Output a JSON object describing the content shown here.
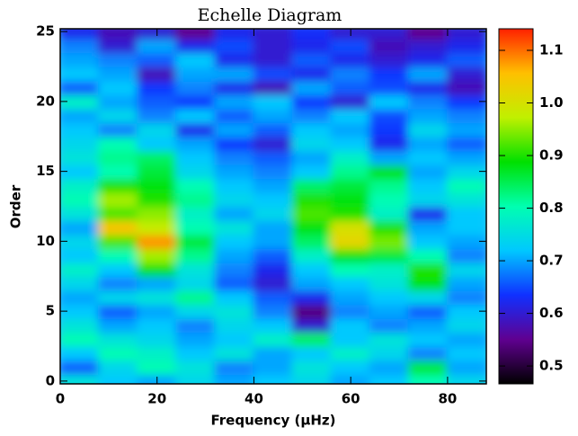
{
  "chart_data": {
    "type": "heatmap",
    "title": "Echelle Diagram",
    "x_label": "Frequency (μHz)",
    "y_label": "Order",
    "x": [
      4,
      12,
      20,
      28,
      36,
      44,
      52,
      60,
      68,
      76,
      84
    ],
    "y": [
      0,
      1,
      2,
      3,
      4,
      5,
      6,
      7,
      8,
      9,
      10,
      11,
      12,
      13,
      14,
      15,
      16,
      17,
      18,
      19,
      20,
      21,
      22,
      23,
      24,
      25
    ],
    "z": [
      [
        0.76,
        0.72,
        0.7,
        0.74,
        0.7,
        0.72,
        0.74,
        0.7,
        0.72,
        0.8,
        0.74
      ],
      [
        0.66,
        0.74,
        0.8,
        0.76,
        0.68,
        0.7,
        0.76,
        0.72,
        0.7,
        0.86,
        0.7
      ],
      [
        0.72,
        0.8,
        0.78,
        0.72,
        0.76,
        0.7,
        0.72,
        0.78,
        0.74,
        0.68,
        0.72
      ],
      [
        0.8,
        0.76,
        0.74,
        0.7,
        0.72,
        0.78,
        0.84,
        0.72,
        0.76,
        0.72,
        0.7
      ],
      [
        0.76,
        0.7,
        0.72,
        0.68,
        0.74,
        0.72,
        0.6,
        0.72,
        0.68,
        0.7,
        0.74
      ],
      [
        0.72,
        0.66,
        0.7,
        0.74,
        0.76,
        0.68,
        0.54,
        0.68,
        0.7,
        0.66,
        0.72
      ],
      [
        0.7,
        0.74,
        0.76,
        0.82,
        0.72,
        0.66,
        0.62,
        0.7,
        0.72,
        0.74,
        0.68
      ],
      [
        0.74,
        0.68,
        0.7,
        0.74,
        0.66,
        0.6,
        0.7,
        0.72,
        0.76,
        0.88,
        0.7
      ],
      [
        0.78,
        0.72,
        0.88,
        0.76,
        0.68,
        0.62,
        0.72,
        0.8,
        0.78,
        0.9,
        0.74
      ],
      [
        0.72,
        0.8,
        0.96,
        0.82,
        0.7,
        0.66,
        0.78,
        0.88,
        0.86,
        0.8,
        0.68
      ],
      [
        0.74,
        0.92,
        1.08,
        0.86,
        0.72,
        0.7,
        0.84,
        1.02,
        0.94,
        0.72,
        0.7
      ],
      [
        0.7,
        1.05,
        0.98,
        0.8,
        0.76,
        0.7,
        0.88,
        1.0,
        0.9,
        0.7,
        0.72
      ],
      [
        0.76,
        0.92,
        0.95,
        0.78,
        0.7,
        0.74,
        0.92,
        0.9,
        0.78,
        0.62,
        0.72
      ],
      [
        0.8,
        0.96,
        0.9,
        0.82,
        0.74,
        0.72,
        0.9,
        0.88,
        0.8,
        0.74,
        0.76
      ],
      [
        0.78,
        0.9,
        0.88,
        0.8,
        0.72,
        0.7,
        0.84,
        0.86,
        0.82,
        0.72,
        0.8
      ],
      [
        0.72,
        0.8,
        0.86,
        0.74,
        0.7,
        0.68,
        0.72,
        0.82,
        0.88,
        0.7,
        0.74
      ],
      [
        0.76,
        0.82,
        0.84,
        0.72,
        0.68,
        0.66,
        0.7,
        0.78,
        0.7,
        0.72,
        0.7
      ],
      [
        0.74,
        0.8,
        0.72,
        0.7,
        0.64,
        0.6,
        0.74,
        0.72,
        0.62,
        0.7,
        0.66
      ],
      [
        0.72,
        0.68,
        0.74,
        0.62,
        0.7,
        0.66,
        0.72,
        0.7,
        0.64,
        0.74,
        0.7
      ],
      [
        0.7,
        0.74,
        0.68,
        0.72,
        0.66,
        0.7,
        0.68,
        0.72,
        0.65,
        0.7,
        0.68
      ],
      [
        0.78,
        0.7,
        0.66,
        0.64,
        0.7,
        0.72,
        0.64,
        0.6,
        0.72,
        0.68,
        0.64
      ],
      [
        0.66,
        0.72,
        0.64,
        0.68,
        0.62,
        0.58,
        0.7,
        0.66,
        0.65,
        0.62,
        0.58
      ],
      [
        0.72,
        0.7,
        0.58,
        0.7,
        0.7,
        0.65,
        0.62,
        0.68,
        0.64,
        0.7,
        0.6
      ],
      [
        0.7,
        0.68,
        0.66,
        0.72,
        0.62,
        0.6,
        0.66,
        0.62,
        0.6,
        0.62,
        0.66
      ],
      [
        0.68,
        0.6,
        0.7,
        0.62,
        0.65,
        0.6,
        0.62,
        0.65,
        0.58,
        0.6,
        0.62
      ],
      [
        0.62,
        0.58,
        0.6,
        0.55,
        0.62,
        0.6,
        0.63,
        0.6,
        0.6,
        0.55,
        0.6
      ]
    ],
    "xlim": [
      0,
      88
    ],
    "xticks": [
      0,
      20,
      40,
      60,
      80
    ],
    "ylim": [
      -0.2,
      25.2
    ],
    "yticks": [
      0,
      5,
      10,
      15,
      20,
      25
    ],
    "clim": [
      0.466,
      1.141
    ],
    "cticks": [
      0.5,
      0.6,
      0.7,
      0.8,
      0.9,
      {
        "value": 1,
        "label": "1.0"
      },
      1.1
    ],
    "colors": [
      "#000000",
      "#600090",
      "#1030ff",
      "#00c8ff",
      "#00ffb0",
      "#00e000",
      "#c0f000",
      "#ffc000",
      "#ff2000"
    ]
  }
}
